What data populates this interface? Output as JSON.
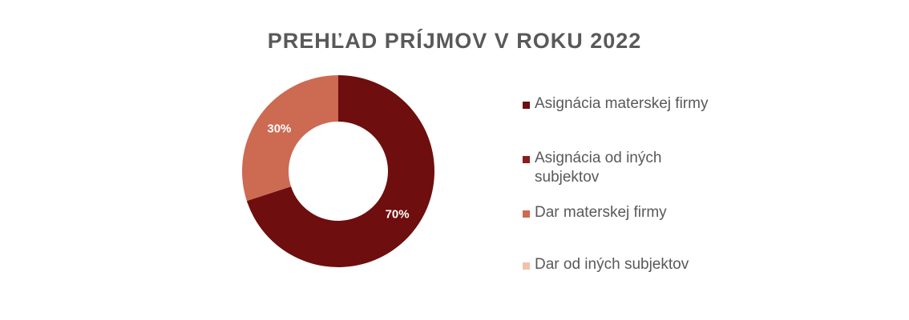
{
  "chart_data": {
    "type": "pie",
    "title": "PREHĽAD PRÍJMOV V ROKU 2022",
    "categories": [
      "Asignácia materskej firmy",
      "Asignácia od iných subjektov",
      "Dar materskej firmy",
      "Dar od iných subjektov"
    ],
    "values": [
      70,
      0,
      30,
      0
    ],
    "data_labels": [
      "70%",
      "",
      "30%",
      ""
    ],
    "colors": [
      "#6e0e0e",
      "#8c1c1c",
      "#cd6a52",
      "#f0c2aa"
    ],
    "legend": "right",
    "donut": true
  }
}
